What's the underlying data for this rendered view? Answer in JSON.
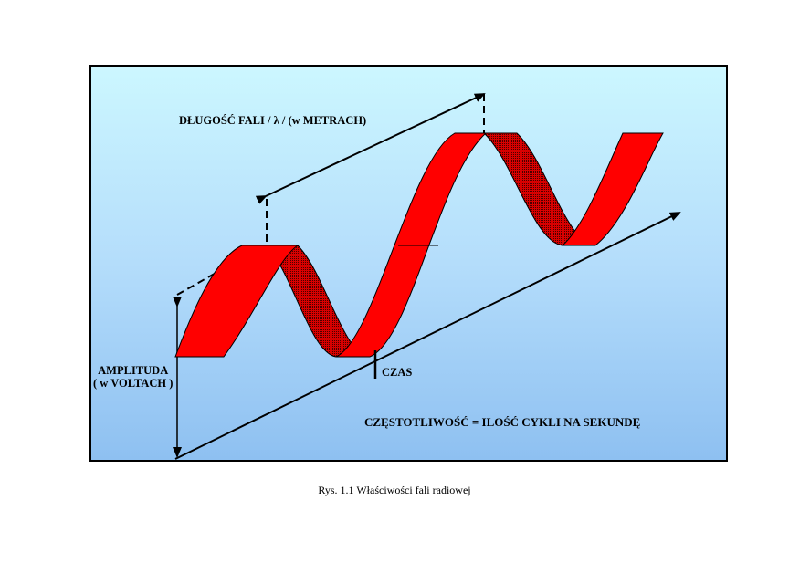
{
  "figure": {
    "label_wavelength": "DŁUGOŚĆ FALI / λ / (w METRACH)",
    "label_amplitude_line1": "AMPLITUDA",
    "label_amplitude_line2": "( w VOLTACH )",
    "label_time": "CZAS",
    "label_frequency": "CZĘSTOTLIWOŚĆ = ILOŚĆ CYKLI NA SEKUNDĘ",
    "colors": {
      "wave_fill": "#ff0000",
      "wave_outline": "#000000",
      "background_top": "#ccf7ff",
      "background_bottom": "#8ec0f1"
    }
  },
  "caption": "Rys. 1.1  Właściwości fali radiowej"
}
